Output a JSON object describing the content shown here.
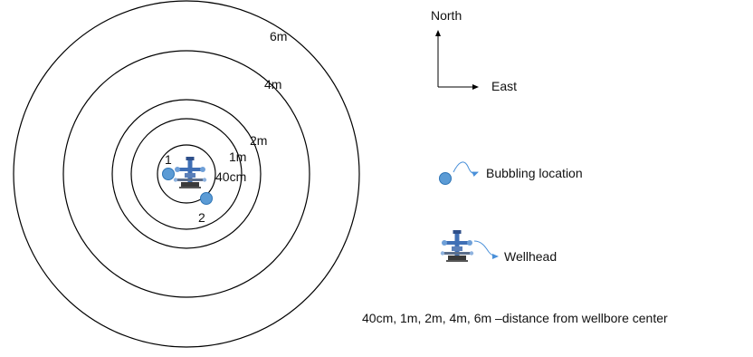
{
  "rings": [
    {
      "label": "40cm"
    },
    {
      "label": "1m"
    },
    {
      "label": "2m"
    },
    {
      "label": "4m"
    },
    {
      "label": "6m"
    }
  ],
  "points": [
    {
      "label": "1"
    },
    {
      "label": "2"
    }
  ],
  "compass": {
    "north": "North",
    "east": "East"
  },
  "legend": {
    "bubbling": "Bubbling location",
    "wellhead": "Wellhead"
  },
  "note": "40cm, 1m, 2m, 4m, 6m –distance from wellbore center",
  "colors": {
    "bubble_fill": "#5b9bd5",
    "bubble_stroke": "#2e75b6",
    "arrow": "#4a90d9",
    "wellhead_blue": "#3f6fb5",
    "wellhead_dark": "#3a3a3a"
  },
  "icons": [
    "wellhead-icon",
    "bubble-icon",
    "north-arrow-icon",
    "east-arrow-icon"
  ]
}
